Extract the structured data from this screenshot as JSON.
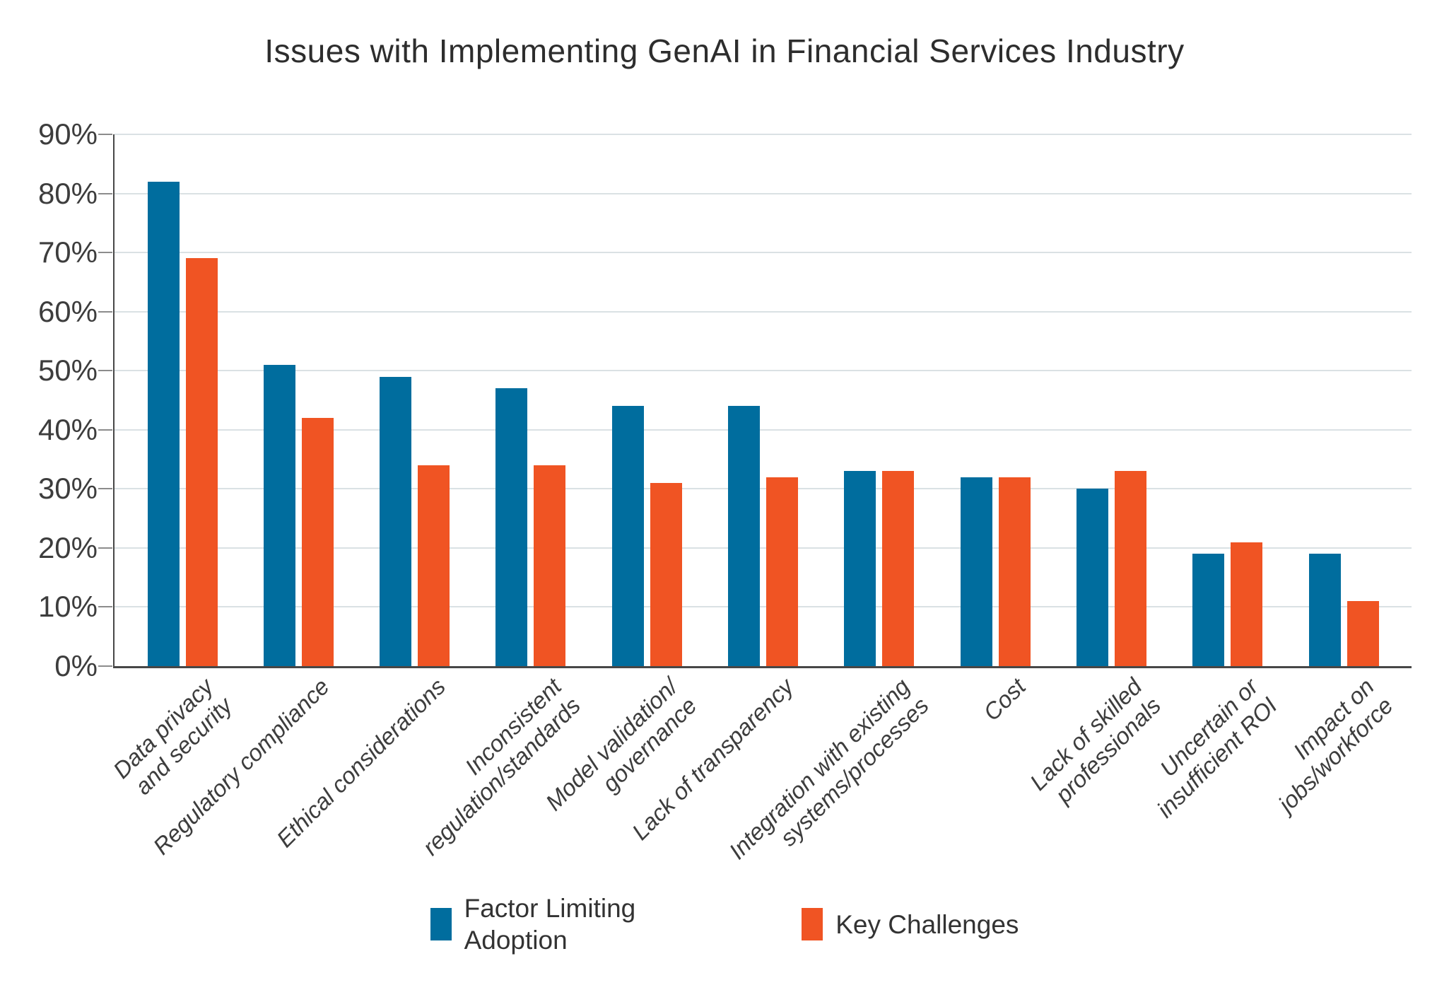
{
  "chart_data": {
    "type": "bar",
    "title": "Issues with Implementing GenAI in Financial Services Industry",
    "categories": [
      "Data privacy\nand security",
      "Regulatory compliance",
      "Ethical considerations",
      "Inconsistent\nregulation/standards",
      "Model validation/\ngovernance",
      "Lack of transparency",
      "Integration with existing\nsystems/processes",
      "Cost",
      "Lack of skilled\nprofessionals",
      "Uncertain or\ninsufficient ROI",
      "Impact on\njobs/workforce"
    ],
    "series": [
      {
        "name": "Factor Limiting Adoption",
        "legend_label": "Factor Limiting\nAdoption",
        "color": "#006d9e",
        "values": [
          82,
          51,
          49,
          47,
          44,
          44,
          33,
          32,
          30,
          19,
          19
        ]
      },
      {
        "name": "Key Challenges",
        "legend_label": "Key Challenges",
        "color": "#f05423",
        "values": [
          69,
          42,
          34,
          34,
          31,
          32,
          33,
          32,
          33,
          21,
          11
        ]
      }
    ],
    "xlabel": "",
    "ylabel": "",
    "ylim": [
      0,
      90
    ],
    "ytick_labels": [
      "0%",
      "10%",
      "20%",
      "30%",
      "40%",
      "50%",
      "60%",
      "70%",
      "80%",
      "90%"
    ],
    "value_format": "percent",
    "grid": "horizontal",
    "legend_position": "bottom"
  },
  "colors": {
    "background": "#ffffff",
    "title_text": "#2d2d2d",
    "axis_line": "#474747",
    "tick_mark": "#8c8c8c",
    "tick_label_text": "#3d3d3d",
    "gridline": "#dae1e4",
    "category_label_text": "#3d3d3d",
    "legend_text": "#333333",
    "series_blue": "#006d9e",
    "series_orange": "#f05423"
  }
}
